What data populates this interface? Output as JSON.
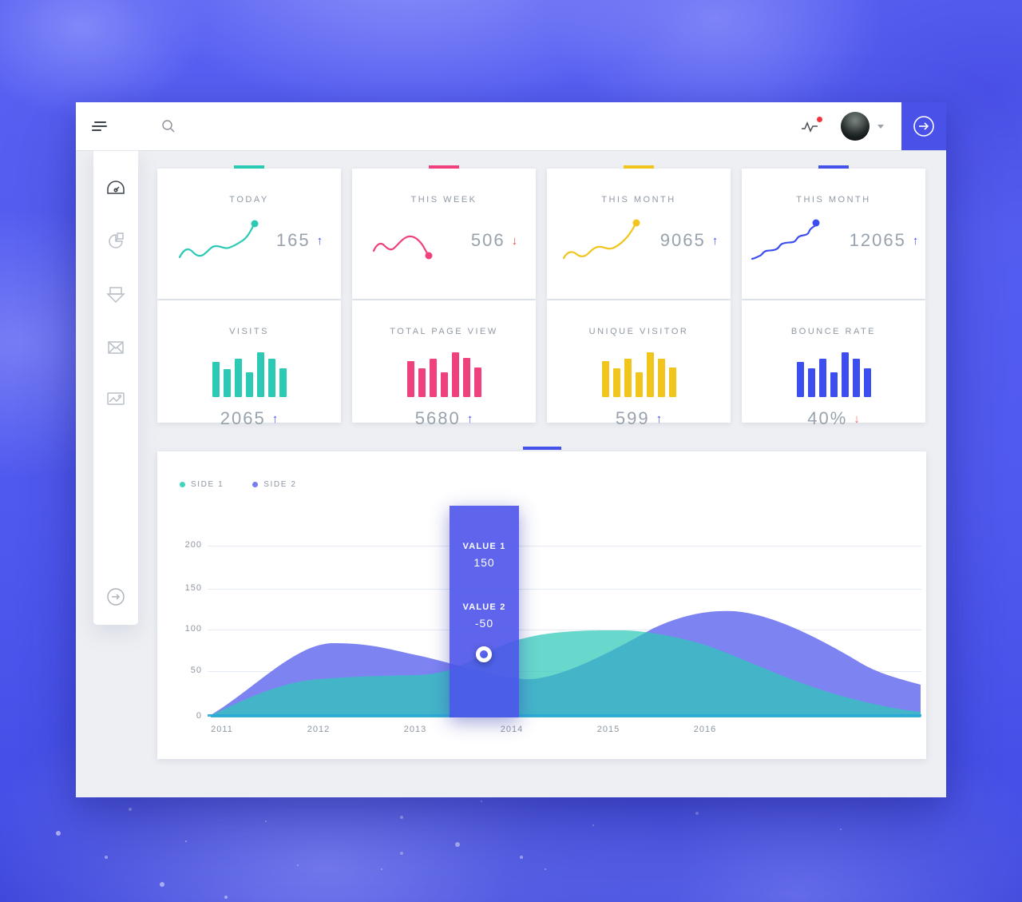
{
  "colors": {
    "accent-teal": "#2CC9B5",
    "accent-pink": "#F0417F",
    "accent-yellow": "#F2C51D",
    "accent-blue": "#4353E9",
    "indigo": "#4A51E9",
    "red": "#E94C4C",
    "notification-red": "#F5333F",
    "area-teal": "#2EC9B9",
    "area-purple": "#6C72F0",
    "baseline-cyan": "#2AA9D8"
  },
  "topbar": {
    "icons": [
      "menu",
      "search",
      "activity",
      "avatar",
      "dropdown",
      "arrow-right"
    ]
  },
  "sidebar": {
    "items": [
      {
        "icon": "speedometer",
        "active": true
      },
      {
        "icon": "pie-chart",
        "active": false
      },
      {
        "icon": "printer",
        "active": false
      },
      {
        "icon": "mail",
        "active": false
      },
      {
        "icon": "image",
        "active": false
      }
    ],
    "bottom_icon": "arrow-right-circle"
  },
  "stats": {
    "cards": [
      {
        "label": "TODAY",
        "value": "165",
        "trend": "up",
        "arrow": "↑",
        "color": "#2CC9B5"
      },
      {
        "label": "THIS WEEK",
        "value": "506",
        "trend": "down",
        "arrow": "↓",
        "color": "#F0417F"
      },
      {
        "label": "THIS MONTH",
        "value": "9065",
        "trend": "up",
        "arrow": "↑",
        "color": "#F2C51D"
      },
      {
        "label": "THIS MONTH",
        "value": "12065",
        "trend": "up",
        "arrow": "↑",
        "color": "#4353E9"
      }
    ],
    "bar_cards": [
      {
        "label": "VISITS",
        "value": "2065",
        "trend": "up",
        "arrow": "↑",
        "color": "#2CC9B5",
        "bars": [
          79,
          63,
          86,
          56,
          100,
          86,
          65
        ]
      },
      {
        "label": "TOTAL PAGE VIEW",
        "value": "5680",
        "trend": "up",
        "arrow": "↑",
        "color": "#F0417F",
        "bars": [
          80,
          64,
          86,
          55,
          100,
          87,
          66
        ]
      },
      {
        "label": "UNIQUE VISITOR",
        "value": "599",
        "trend": "up",
        "arrow": "↑",
        "color": "#F2C51D",
        "bars": [
          81,
          65,
          86,
          56,
          100,
          86,
          66
        ]
      },
      {
        "label": "BOUNCE RATE",
        "value": "40%",
        "trend": "down",
        "arrow": "↓",
        "color": "#3D4EF0",
        "bars": [
          79,
          64,
          86,
          55,
          100,
          86,
          65
        ]
      }
    ]
  },
  "chart_data": {
    "type": "area",
    "title": "",
    "x": [
      "2011",
      "2012",
      "2013",
      "2014",
      "2015",
      "2016"
    ],
    "series": [
      {
        "name": "SIDE 1",
        "color": "#2EC9B9",
        "values": [
          5,
          44,
          48,
          87,
          100,
          84
        ]
      },
      {
        "name": "SIDE 2",
        "color": "#6C72F0",
        "values": [
          8,
          83,
          72,
          45,
          92,
          120
        ]
      }
    ],
    "ylim": [
      0,
      200
    ],
    "y_ticks": [
      "200",
      "150",
      "100",
      "50",
      "0"
    ],
    "grid": true,
    "legend_position": "top-left",
    "tooltip": {
      "title1": "VALUE 1",
      "value1": "150",
      "title2": "VALUE 2",
      "value2": "-50",
      "x_position": "2013.7",
      "marker_value": 73
    }
  }
}
